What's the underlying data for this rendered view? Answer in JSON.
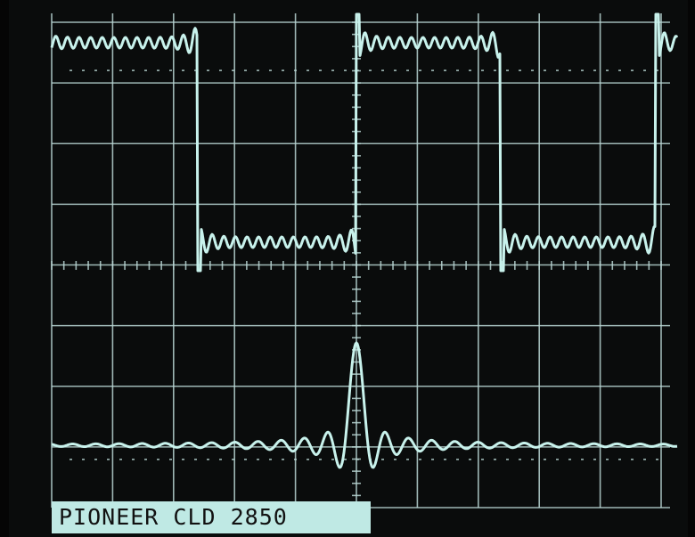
{
  "label": "PIONEER CLD 2850"
}
